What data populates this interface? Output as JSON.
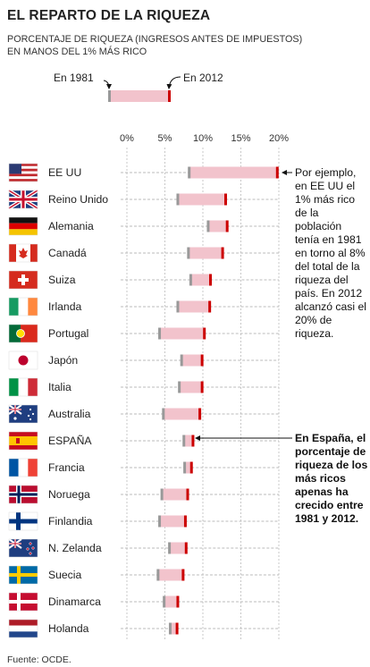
{
  "title": "EL REPARTO DE LA RIQUEZA",
  "subtitle_line1": "PORCENTAJE DE RIQUEZA (ingresos antes de impuestos)",
  "subtitle_line2": "EN MANOS DEL 1% MÁS RICO",
  "legend": {
    "start_label": "En 1981",
    "end_label": "En 2012"
  },
  "source": "Fuente: OCDE.",
  "annotation_us": "Por ejemplo, en EE UU el 1% más rico de la población tenía en 1981 en torno al 8% del total de la riqueza del país. En 2012 alcanzó casi el 20% de riqueza.",
  "annotation_es": "En España, el porcentaje de riqueza de los más ricos apenas ha crecido entre 1981 y 2012.",
  "colors": {
    "bar": "#f2c3cc",
    "start": "#999999",
    "end": "#cc0000"
  },
  "chart_data": {
    "type": "bar",
    "subtype": "range",
    "x_ticks": [
      "0%",
      "5%",
      "10%",
      "15%",
      "20%"
    ],
    "xlim": [
      0,
      20
    ],
    "categories": [
      "EE UU",
      "Reino Unido",
      "Alemania",
      "Canadá",
      "Suiza",
      "Irlanda",
      "Portugal",
      "Japón",
      "Italia",
      "Australia",
      "ESPAÑA",
      "Francia",
      "Noruega",
      "Finlandia",
      "N. Zelanda",
      "Suecia",
      "Dinamarca",
      "Holanda"
    ],
    "series": [
      {
        "name": "En 1981",
        "values": [
          8.2,
          6.7,
          10.7,
          8.1,
          8.4,
          6.7,
          4.3,
          7.2,
          6.9,
          4.8,
          7.5,
          7.6,
          4.6,
          4.3,
          5.6,
          4.1,
          4.9,
          5.7
        ]
      },
      {
        "name": "En 2012",
        "values": [
          19.8,
          13.0,
          13.2,
          12.6,
          11.0,
          10.9,
          10.2,
          9.9,
          9.9,
          9.6,
          8.7,
          8.5,
          8.0,
          7.7,
          7.8,
          7.4,
          6.7,
          6.6
        ]
      }
    ]
  },
  "flags": [
    "us",
    "uk",
    "de",
    "ca",
    "ch",
    "ie",
    "pt",
    "jp",
    "it",
    "au",
    "es",
    "fr",
    "no",
    "fi",
    "nz",
    "se",
    "dk",
    "nl"
  ]
}
